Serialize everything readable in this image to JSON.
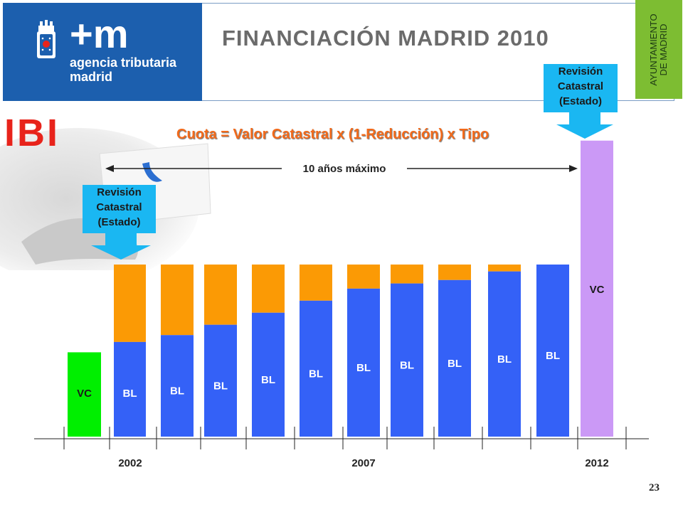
{
  "header": {
    "title": "FINANCIACIÓN MADRID 2010",
    "logo_plus_m": "+m",
    "logo_line1": "agencia tributaria",
    "logo_line2": "madrid",
    "ayuntamiento_line1": "AYUNTAMIENTO",
    "ayuntamiento_line2": "DE MADRID"
  },
  "slide": {
    "heading": "IBI",
    "formula": "Cuota = Valor Catastral x (1-Reducción) x Tipo",
    "callout_lines": [
      "Revisión",
      "Catastral",
      "(Estado)"
    ],
    "span_label": "10 años máximo",
    "page_number": "23"
  },
  "colors": {
    "logo_blue": "#1c5fae",
    "ayuntamiento_green": "#7dbd32",
    "title_gray": "#6b6b6b",
    "ibi_red": "#e8231b",
    "formula_orange": "#f26a1b",
    "callout_cyan": "#1ab7f2",
    "bl_blue": "#3461f7",
    "reduction_orange": "#fb9a05",
    "vc_green": "#00ef00",
    "vc_violet": "#cb99f6"
  },
  "chart_data": {
    "type": "bar",
    "stacked": true,
    "x_tick_labels": [
      "2002",
      "2007",
      "2012"
    ],
    "bars": [
      {
        "label": "VC",
        "series": "VC",
        "value": 0.49
      },
      {
        "label": "BL",
        "series": "BL",
        "value": 0.55,
        "reduction": 0.45
      },
      {
        "label": "BL",
        "series": "BL",
        "value": 0.59,
        "reduction": 0.41
      },
      {
        "label": "BL",
        "series": "BL",
        "value": 0.65,
        "reduction": 0.35
      },
      {
        "label": "BL",
        "series": "BL",
        "value": 0.72,
        "reduction": 0.28
      },
      {
        "label": "BL",
        "series": "BL",
        "value": 0.79,
        "reduction": 0.21
      },
      {
        "label": "BL",
        "series": "BL",
        "value": 0.86,
        "reduction": 0.14
      },
      {
        "label": "BL",
        "series": "BL",
        "value": 0.89,
        "reduction": 0.11
      },
      {
        "label": "BL",
        "series": "BL",
        "value": 0.91,
        "reduction": 0.09
      },
      {
        "label": "BL",
        "series": "BL",
        "value": 0.96,
        "reduction": 0.04
      },
      {
        "label": "BL",
        "series": "BL",
        "value": 1.0,
        "reduction": 0.0
      },
      {
        "label": "VC",
        "series": "VC",
        "value": 1.72
      }
    ]
  }
}
